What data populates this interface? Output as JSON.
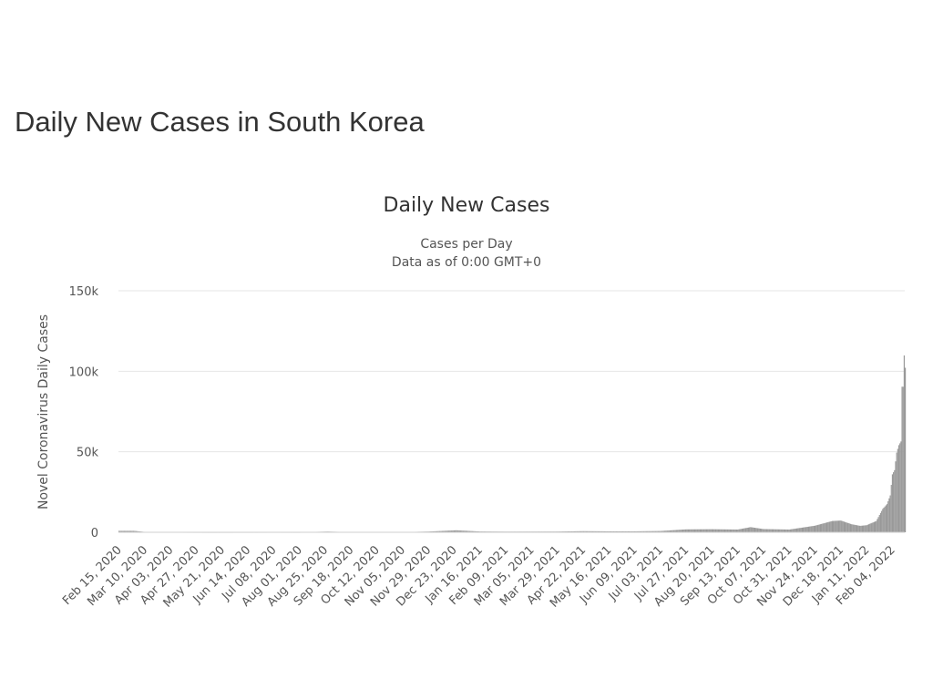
{
  "page": {
    "title": "Daily New Cases in South Korea"
  },
  "chart_data": {
    "type": "bar",
    "title": "Daily New Cases",
    "subtitle_lines": [
      "Cases per Day",
      "Data as of 0:00 GMT+0"
    ],
    "xlabel": "",
    "ylabel": "Novel Coronavirus Daily Cases",
    "ylim": [
      0,
      150000
    ],
    "yticks": [
      {
        "value": 0,
        "label": "0"
      },
      {
        "value": 50000,
        "label": "50k"
      },
      {
        "value": 100000,
        "label": "100k"
      },
      {
        "value": 150000,
        "label": "150k"
      }
    ],
    "xrange": [
      "2020-02-15",
      "2022-02-16"
    ],
    "xticks": [
      "Feb 15, 2020",
      "Mar 10, 2020",
      "Apr 03, 2020",
      "Apr 27, 2020",
      "May 21, 2020",
      "Jun 14, 2020",
      "Jul 08, 2020",
      "Aug 01, 2020",
      "Aug 25, 2020",
      "Sep 18, 2020",
      "Oct 12, 2020",
      "Nov 05, 2020",
      "Nov 29, 2020",
      "Dec 23, 2020",
      "Jan 16, 2021",
      "Feb 09, 2021",
      "Mar 05, 2021",
      "Mar 29, 2021",
      "Apr 22, 2021",
      "May 16, 2021",
      "Jun 09, 2021",
      "Jul 03, 2021",
      "Jul 27, 2021",
      "Aug 20, 2021",
      "Sep 13, 2021",
      "Oct 07, 2021",
      "Oct 31, 2021",
      "Nov 24, 2021",
      "Dec 18, 2021",
      "Jan 11, 2022",
      "Feb 04, 2022"
    ],
    "grid": true,
    "legend": "none",
    "bar_color": "#999999",
    "series": [
      {
        "values": [
          {
            "date": "2020-02-29",
            "value": 900
          },
          {
            "date": "2020-03-10",
            "value": 240
          },
          {
            "date": "2020-04-15",
            "value": 50
          },
          {
            "date": "2020-05-10",
            "value": 30
          },
          {
            "date": "2020-06-14",
            "value": 40
          },
          {
            "date": "2020-07-08",
            "value": 50
          },
          {
            "date": "2020-08-01",
            "value": 40
          },
          {
            "date": "2020-08-27",
            "value": 440
          },
          {
            "date": "2020-09-18",
            "value": 120
          },
          {
            "date": "2020-10-12",
            "value": 100
          },
          {
            "date": "2020-11-05",
            "value": 130
          },
          {
            "date": "2020-11-29",
            "value": 450
          },
          {
            "date": "2020-12-25",
            "value": 1240
          },
          {
            "date": "2021-01-16",
            "value": 500
          },
          {
            "date": "2021-02-09",
            "value": 400
          },
          {
            "date": "2021-03-05",
            "value": 420
          },
          {
            "date": "2021-03-29",
            "value": 450
          },
          {
            "date": "2021-04-22",
            "value": 700
          },
          {
            "date": "2021-05-16",
            "value": 600
          },
          {
            "date": "2021-06-09",
            "value": 600
          },
          {
            "date": "2021-07-03",
            "value": 800
          },
          {
            "date": "2021-07-27",
            "value": 1800
          },
          {
            "date": "2021-08-20",
            "value": 1900
          },
          {
            "date": "2021-09-13",
            "value": 1700
          },
          {
            "date": "2021-09-25",
            "value": 3200
          },
          {
            "date": "2021-10-07",
            "value": 2000
          },
          {
            "date": "2021-10-31",
            "value": 1700
          },
          {
            "date": "2021-11-24",
            "value": 4100
          },
          {
            "date": "2021-12-10",
            "value": 7000
          },
          {
            "date": "2021-12-18",
            "value": 7300
          },
          {
            "date": "2021-12-28",
            "value": 5000
          },
          {
            "date": "2022-01-05",
            "value": 4000
          },
          {
            "date": "2022-01-11",
            "value": 4400
          },
          {
            "date": "2022-01-20",
            "value": 7000
          },
          {
            "date": "2022-01-26",
            "value": 14500
          },
          {
            "date": "2022-01-30",
            "value": 17500
          },
          {
            "date": "2022-02-02",
            "value": 22900
          },
          {
            "date": "2022-02-04",
            "value": 36000
          },
          {
            "date": "2022-02-06",
            "value": 38600
          },
          {
            "date": "2022-02-08",
            "value": 49500
          },
          {
            "date": "2022-02-10",
            "value": 54100
          },
          {
            "date": "2022-02-12",
            "value": 56400
          },
          {
            "date": "2022-02-13",
            "value": 90400
          },
          {
            "date": "2022-02-14",
            "value": 90400
          },
          {
            "date": "2022-02-15",
            "value": 109800
          },
          {
            "date": "2022-02-16",
            "value": 102200
          }
        ]
      }
    ]
  }
}
